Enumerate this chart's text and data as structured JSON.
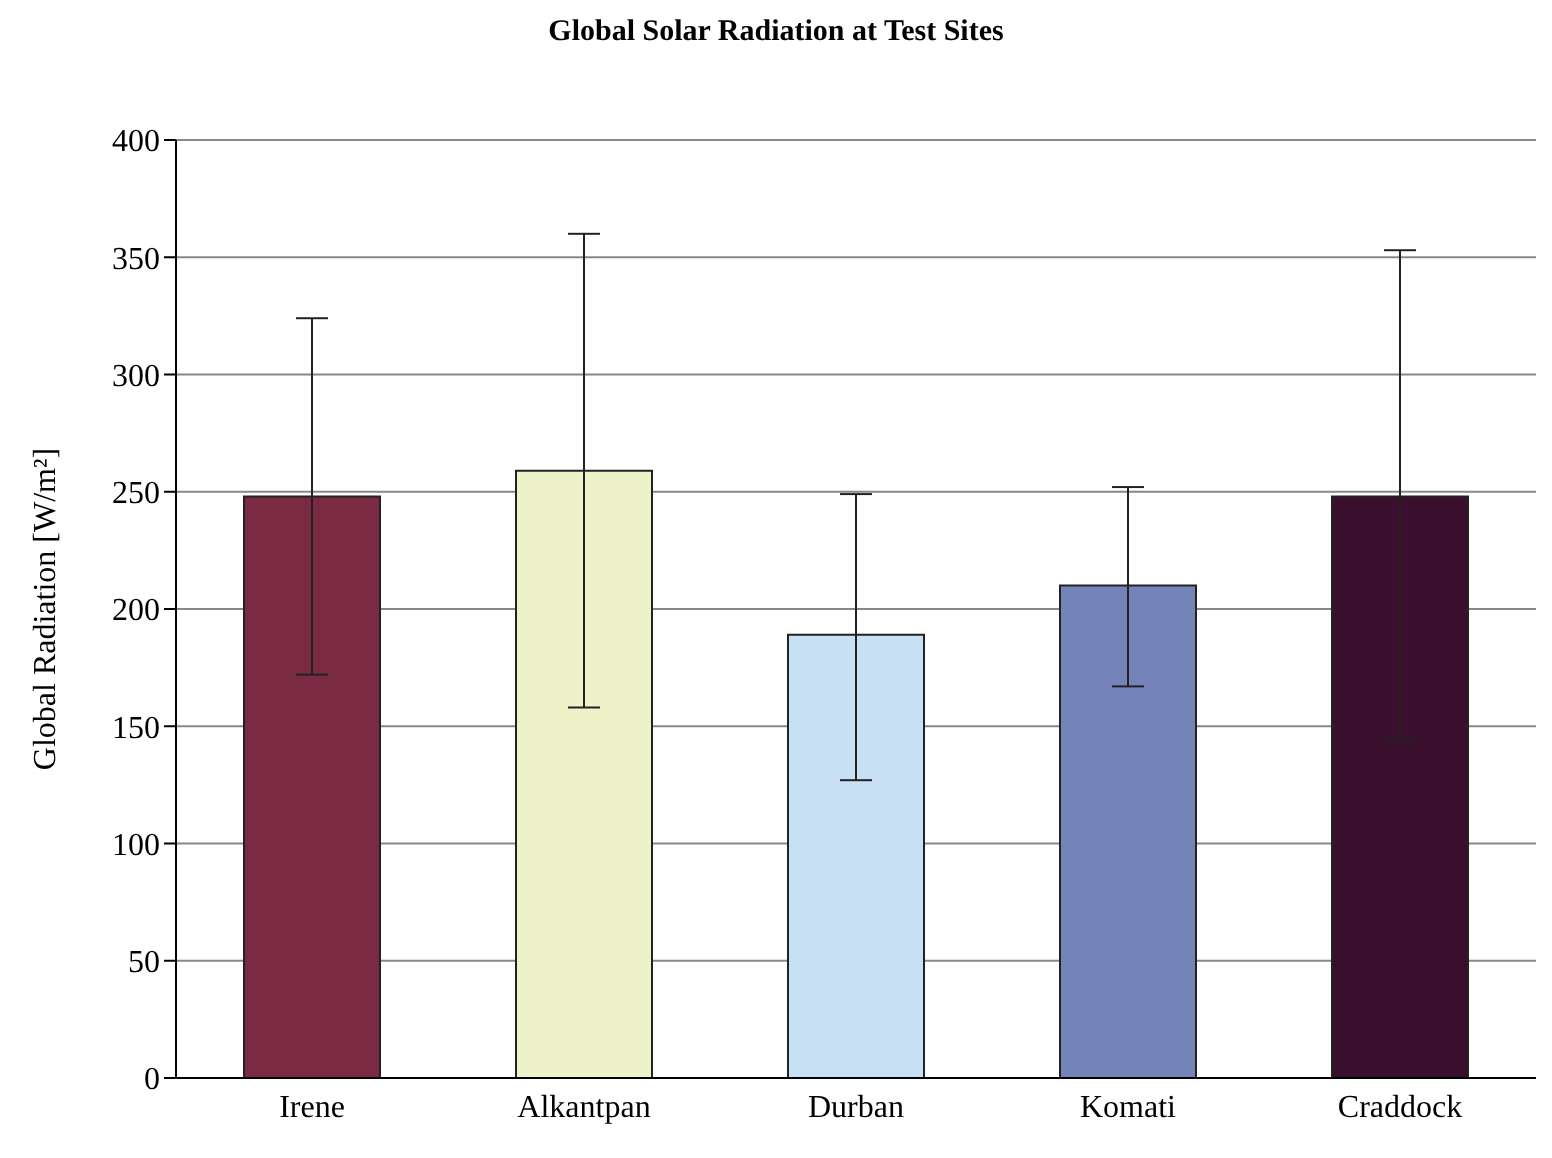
{
  "chart_data": {
    "type": "bar",
    "title": "Global Solar Radiation at Test Sites",
    "ylabel": "Global Radiation [W/m²]",
    "categories": [
      "Irene",
      "Alkantpan",
      "Durban",
      "Komati",
      "Craddock"
    ],
    "values": [
      248,
      259,
      189,
      210,
      248
    ],
    "colors": [
      "#7b2a44",
      "#eef2c8",
      "#c8e0f4",
      "#7484b8",
      "#3a0f2e"
    ],
    "errors": [
      [
        172,
        324
      ],
      [
        158,
        360
      ],
      [
        127,
        249
      ],
      [
        167,
        252
      ],
      [
        144,
        353
      ]
    ],
    "ylim": [
      0,
      400
    ],
    "yticks": [
      0,
      50,
      100,
      150,
      200,
      250,
      300,
      350,
      400
    ],
    "grid": "y",
    "legend": false
  }
}
